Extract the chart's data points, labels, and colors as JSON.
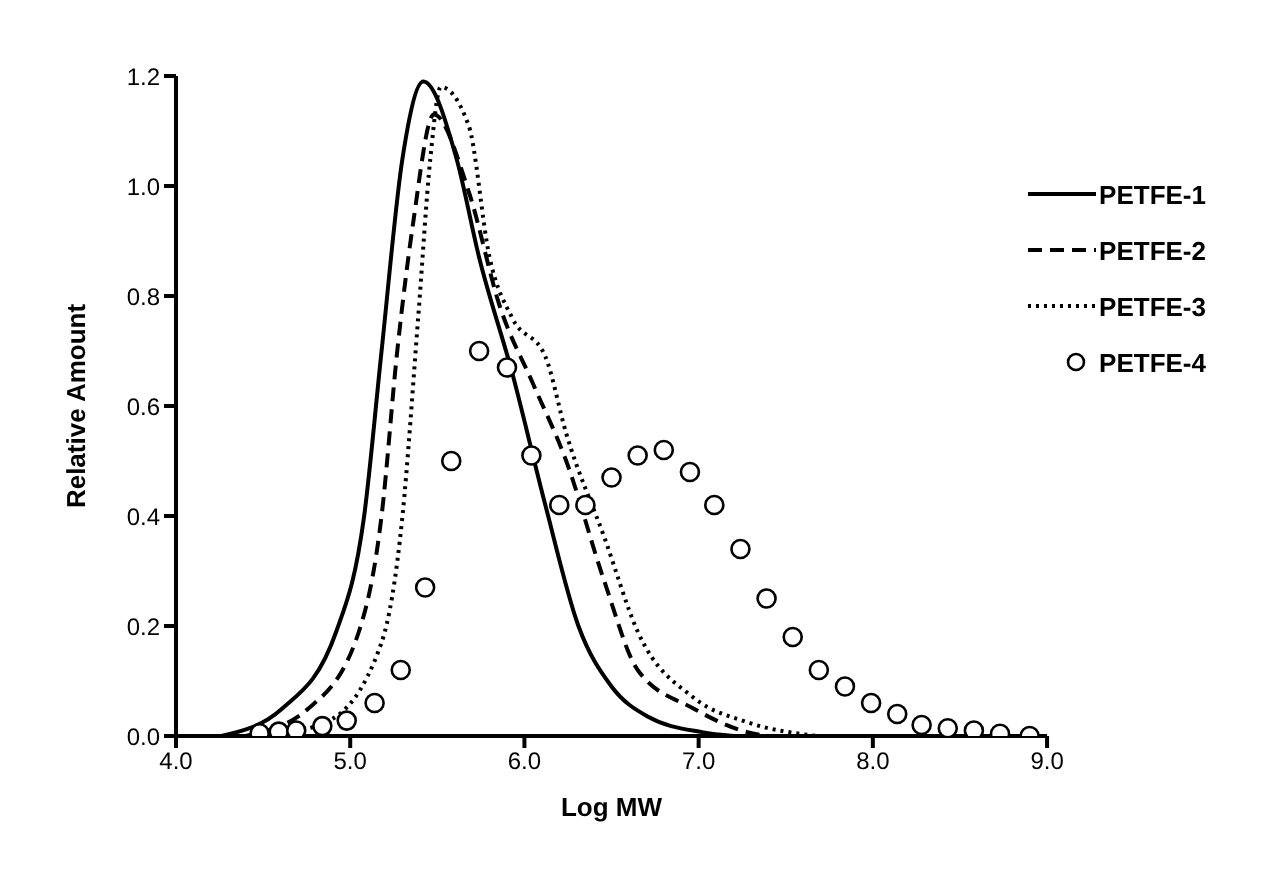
{
  "chart_data": {
    "type": "line",
    "xlabel": "Log MW",
    "ylabel": "Relative Amount",
    "xlim": [
      4.0,
      9.0
    ],
    "xticks": [
      {
        "value": 4,
        "label": "4.0"
      },
      {
        "value": 5,
        "label": "5.0"
      },
      {
        "value": 6,
        "label": "6.0"
      },
      {
        "value": 7,
        "label": "7.0"
      },
      {
        "value": 8,
        "label": "8.0"
      },
      {
        "value": 9,
        "label": "9.0"
      }
    ],
    "ylim": [
      0,
      1.2
    ],
    "yticks": [
      {
        "value": 0,
        "label": "0.0"
      },
      {
        "value": 0.2,
        "label": "0.2"
      },
      {
        "value": 0.4,
        "label": "0.4"
      },
      {
        "value": 0.6,
        "label": "0.6"
      },
      {
        "value": 0.8,
        "label": "0.8"
      },
      {
        "value": 1,
        "label": "1.0"
      },
      {
        "value": 1.2,
        "label": "1.2"
      }
    ],
    "grid": false,
    "legend": "right",
    "series": [
      {
        "name": "PETFE-1",
        "line_style": "solid",
        "color": "#000000",
        "x": [
          4.26,
          4.61,
          4.92,
          5.08,
          5.18,
          5.3,
          5.42,
          5.61,
          5.74,
          5.93,
          6.12,
          6.31,
          6.5,
          6.71,
          7.02,
          7.2
        ],
        "values": [
          0,
          0.05,
          0.19,
          0.4,
          0.7,
          1.05,
          1.19,
          1.05,
          0.87,
          0.66,
          0.42,
          0.2,
          0.09,
          0.035,
          0.007,
          0
        ]
      },
      {
        "name": "PETFE-2",
        "line_style": "dashed",
        "color": "#000000",
        "x": [
          4.4,
          4.76,
          5.05,
          5.18,
          5.27,
          5.36,
          5.48,
          5.68,
          5.86,
          6.05,
          6.24,
          6.46,
          6.65,
          6.97,
          7.28,
          7.4
        ],
        "values": [
          0,
          0.05,
          0.19,
          0.4,
          0.7,
          0.93,
          1.13,
          0.99,
          0.78,
          0.64,
          0.5,
          0.28,
          0.12,
          0.05,
          0.007,
          0
        ]
      },
      {
        "name": "PETFE-3",
        "line_style": "dotted",
        "color": "#000000",
        "x": [
          4.5,
          4.86,
          5.18,
          5.3,
          5.39,
          5.46,
          5.52,
          5.68,
          5.8,
          5.93,
          6.12,
          6.24,
          6.46,
          6.65,
          6.97,
          7.28,
          7.68
        ],
        "values": [
          0,
          0.025,
          0.17,
          0.4,
          0.76,
          1.05,
          1.18,
          1.11,
          0.87,
          0.76,
          0.69,
          0.55,
          0.36,
          0.19,
          0.07,
          0.025,
          0
        ]
      },
      {
        "name": "PETFE-4",
        "type": "scatter",
        "marker": "circle",
        "color": "#000000",
        "x": [
          4.48,
          4.59,
          4.69,
          4.84,
          4.98,
          5.14,
          5.29,
          5.43,
          5.58,
          5.74,
          5.9,
          6.04,
          6.2,
          6.35,
          6.5,
          6.65,
          6.8,
          6.95,
          7.09,
          7.24,
          7.39,
          7.54,
          7.69,
          7.84,
          7.99,
          8.14,
          8.28,
          8.43,
          8.58,
          8.73,
          8.9
        ],
        "values": [
          0.005,
          0.008,
          0.01,
          0.018,
          0.028,
          0.06,
          0.12,
          0.27,
          0.5,
          0.7,
          0.67,
          0.51,
          0.42,
          0.42,
          0.47,
          0.51,
          0.52,
          0.48,
          0.42,
          0.34,
          0.25,
          0.18,
          0.12,
          0.09,
          0.06,
          0.04,
          0.02,
          0.014,
          0.01,
          0.004,
          0
        ]
      }
    ]
  }
}
